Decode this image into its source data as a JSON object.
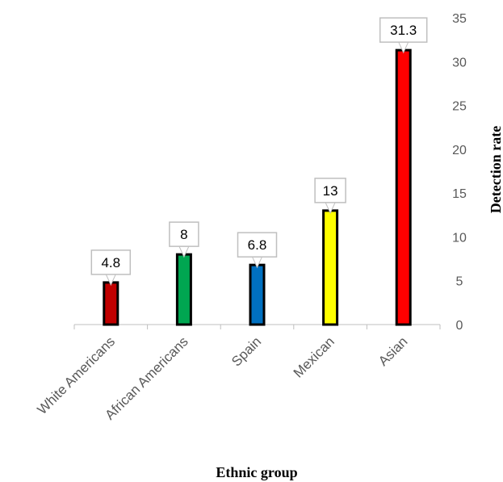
{
  "chart_data": {
    "type": "bar",
    "categories": [
      "White Americans",
      "African Americans",
      "Spain",
      "Mexican",
      "Asian"
    ],
    "values": [
      4.8,
      8,
      6.8,
      13,
      31.3
    ],
    "data_labels": [
      "4.8",
      "8",
      "6.8",
      "13",
      "31.3"
    ],
    "colors": [
      "#c00000",
      "#00a651",
      "#0070c0",
      "#ffff00",
      "#ff0000"
    ],
    "xlabel": "Ethnic group",
    "ylabel": "Detection rate",
    "ylim": [
      0,
      35
    ],
    "yticks": [
      0,
      5,
      10,
      15,
      20,
      25,
      30,
      35
    ],
    "ytick_labels": [
      "0",
      "5",
      "10",
      "15",
      "20",
      "25",
      "30",
      "35"
    ],
    "y_axis_position": "right",
    "grid": false,
    "legend": "none"
  }
}
